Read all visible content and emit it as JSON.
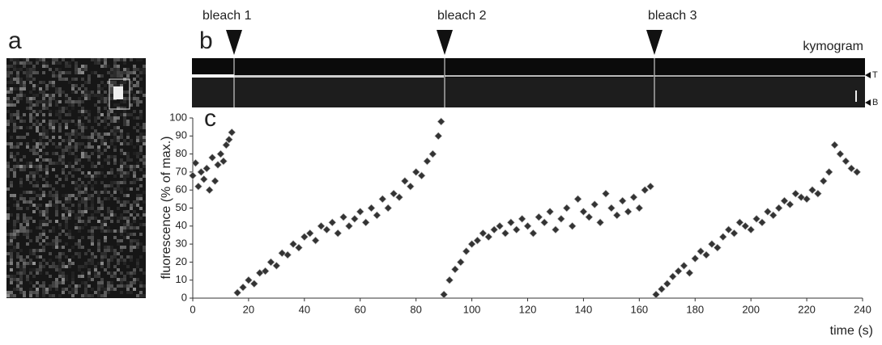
{
  "labels": {
    "panel_a": "a",
    "panel_b": "b",
    "panel_c": "c",
    "bleach_1": "bleach 1",
    "bleach_2": "bleach 2",
    "bleach_3": "bleach 3",
    "kymogram": "kymogram",
    "top": "T",
    "bottom": "B"
  },
  "chart_data": {
    "type": "scatter",
    "xlabel": "time (s)",
    "ylabel": "fluorescence (% of max.)",
    "color": "#333333",
    "x": [
      0,
      1,
      2,
      3,
      4,
      5,
      6,
      7,
      8,
      9,
      10,
      11,
      12,
      13,
      14,
      16,
      18,
      20,
      22,
      24,
      26,
      28,
      30,
      32,
      34,
      36,
      38,
      40,
      42,
      44,
      46,
      48,
      50,
      52,
      54,
      56,
      58,
      60,
      62,
      64,
      66,
      68,
      70,
      72,
      74,
      76,
      78,
      80,
      82,
      84,
      86,
      88,
      89,
      90,
      92,
      94,
      96,
      98,
      100,
      102,
      104,
      106,
      108,
      110,
      112,
      114,
      116,
      118,
      120,
      122,
      124,
      126,
      128,
      130,
      132,
      134,
      136,
      138,
      140,
      142,
      144,
      146,
      148,
      150,
      152,
      154,
      156,
      158,
      160,
      162,
      164,
      166,
      168,
      170,
      172,
      174,
      176,
      178,
      180,
      182,
      184,
      186,
      188,
      190,
      192,
      194,
      196,
      198,
      200,
      202,
      204,
      206,
      208,
      210,
      212,
      214,
      216,
      218,
      220,
      222,
      224,
      226,
      228,
      230,
      232,
      234,
      236,
      238
    ],
    "values": [
      68,
      75,
      62,
      70,
      66,
      72,
      60,
      78,
      65,
      74,
      80,
      76,
      85,
      88,
      92,
      3,
      6,
      10,
      8,
      14,
      15,
      20,
      18,
      25,
      24,
      30,
      28,
      34,
      36,
      32,
      40,
      38,
      42,
      36,
      45,
      40,
      44,
      48,
      42,
      50,
      46,
      55,
      50,
      58,
      56,
      65,
      62,
      70,
      68,
      76,
      80,
      90,
      98,
      2,
      10,
      16,
      20,
      26,
      30,
      32,
      36,
      34,
      38,
      40,
      36,
      42,
      38,
      44,
      40,
      36,
      45,
      42,
      48,
      38,
      44,
      50,
      40,
      55,
      48,
      45,
      52,
      42,
      58,
      50,
      46,
      54,
      48,
      56,
      50,
      60,
      62,
      2,
      5,
      8,
      12,
      15,
      18,
      14,
      22,
      26,
      24,
      30,
      28,
      34,
      38,
      36,
      42,
      40,
      38,
      44,
      42,
      48,
      46,
      50,
      54,
      52,
      58,
      56,
      55,
      60,
      58,
      65,
      70,
      85,
      80,
      76,
      72,
      70
    ],
    "xlim": [
      0,
      240
    ],
    "ylim": [
      0,
      100
    ],
    "xticks": [
      0,
      20,
      40,
      60,
      80,
      100,
      120,
      140,
      160,
      180,
      200,
      220,
      240
    ],
    "yticks": [
      0,
      10,
      20,
      30,
      40,
      50,
      60,
      70,
      80,
      90,
      100
    ]
  }
}
